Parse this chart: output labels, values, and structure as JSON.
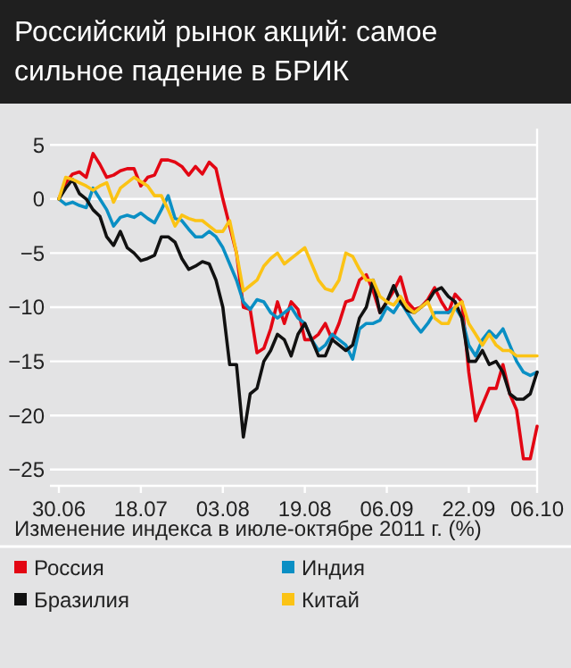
{
  "chart_data": {
    "type": "line",
    "title": "Российский рынок акций: самое сильное падение в БРИК",
    "xlabel": "Изменение индекса в июле-октябре 2011 г. (%)",
    "categories": [
      "30.06",
      null,
      null,
      null,
      null,
      null,
      null,
      null,
      null,
      null,
      null,
      null,
      "18.07",
      null,
      null,
      null,
      null,
      null,
      null,
      null,
      null,
      null,
      null,
      null,
      "03.08",
      null,
      null,
      null,
      null,
      null,
      null,
      null,
      null,
      null,
      null,
      null,
      "19.08",
      null,
      null,
      null,
      null,
      null,
      null,
      null,
      null,
      null,
      null,
      null,
      "06.09",
      null,
      null,
      null,
      null,
      null,
      null,
      null,
      null,
      null,
      null,
      null,
      "22.09",
      null,
      null,
      null,
      null,
      null,
      null,
      null,
      null,
      null,
      "06.10"
    ],
    "ylim": [
      -26.5,
      6.5
    ],
    "yticks": [
      5,
      0,
      {
        "value": -5,
        "label": "−5"
      },
      {
        "value": -10,
        "label": "−10"
      },
      {
        "value": -15,
        "label": "−15"
      },
      {
        "value": -20,
        "label": "−20"
      },
      {
        "value": -25,
        "label": "−25"
      }
    ],
    "grid": "y",
    "legend": "bottom",
    "line_style": "solid",
    "series": [
      {
        "name": "Россия",
        "color": "#e30613",
        "values": [
          0,
          1.5,
          2.3,
          2.5,
          2,
          4.2,
          3.2,
          2,
          2.2,
          2.6,
          2.8,
          2.8,
          1.2,
          2,
          2.2,
          3.6,
          3.6,
          3.4,
          3,
          2.2,
          3,
          2.3,
          3.4,
          2.8,
          0,
          -2.5,
          -5,
          -10,
          -10.2,
          -14.2,
          -13.8,
          -12,
          -9.5,
          -11.5,
          -9.5,
          -10.2,
          -13,
          -13,
          -12.5,
          -11.5,
          -13,
          -11.5,
          -9.5,
          -9.3,
          -7.5,
          -7,
          -8.5,
          -10.5,
          -9.5,
          -8.5,
          -7.2,
          -9.5,
          -10.2,
          -10,
          -9.3,
          -8.2,
          -9.5,
          -10.5,
          -8.8,
          -9.5,
          -16,
          -20.5,
          -19,
          -17.5,
          -17.5,
          -15.3,
          -18,
          -19.5,
          -24,
          -24,
          -21
        ]
      },
      {
        "name": "Индия",
        "color": "#0a8fc4",
        "values": [
          0,
          -0.5,
          -0.3,
          -0.6,
          -0.8,
          1,
          0,
          -1,
          -2.5,
          -1.7,
          -1.5,
          -1.7,
          -1.3,
          -1.8,
          -2.2,
          -1,
          0.3,
          -1.8,
          -2,
          -2.8,
          -3.5,
          -3.5,
          -3,
          -3.5,
          -4.5,
          -6,
          -7.5,
          -9.5,
          -10.2,
          -9.3,
          -9.5,
          -10.5,
          -11,
          -10.5,
          -10,
          -11,
          -11.5,
          -13,
          -14,
          -13.5,
          -12.5,
          -13,
          -13.5,
          -14.8,
          -12,
          -11.5,
          -11.5,
          -11.2,
          -10,
          -10.5,
          -9.5,
          -10.5,
          -11.5,
          -12.3,
          -11.5,
          -10.5,
          -10.5,
          -10.5,
          -10,
          -11,
          -13.5,
          -14.5,
          -13,
          -12.2,
          -12.8,
          -12,
          -13.5,
          -15,
          -16,
          -16.3,
          -16
        ]
      },
      {
        "name": "Бразилия",
        "color": "#111111",
        "values": [
          0,
          1,
          1.8,
          0.5,
          0,
          -1,
          -1.6,
          -3.5,
          -4.3,
          -3,
          -4.5,
          -5,
          -5.7,
          -5.5,
          -5.2,
          -3.5,
          -3.5,
          -4,
          -5.5,
          -6.5,
          -6.2,
          -5.8,
          -6,
          -7.5,
          -10,
          -15.3,
          -15.3,
          -22,
          -18,
          -17.5,
          -15,
          -14,
          -12.5,
          -13,
          -14.5,
          -12.5,
          -11.5,
          -13,
          -14.5,
          -14.5,
          -13,
          -13.5,
          -14,
          -13.5,
          -11,
          -10,
          -7.5,
          -10.5,
          -9.5,
          -8,
          -9.5,
          -10.3,
          -10.5,
          -10,
          -9.5,
          -8.5,
          -8.2,
          -9,
          -9.5,
          -11,
          -15,
          -15,
          -14,
          -15.3,
          -15,
          -16,
          -18,
          -18.5,
          -18.5,
          -18,
          -16
        ]
      },
      {
        "name": "Китай",
        "color": "#fbc315",
        "values": [
          0,
          2,
          1.8,
          1.5,
          1.2,
          0.8,
          1.2,
          1.5,
          -0.3,
          1,
          1.5,
          2,
          1.6,
          1.2,
          0.3,
          0.3,
          -1,
          -2.5,
          -1.5,
          -1.8,
          -2,
          -2,
          -2.5,
          -3,
          -3,
          -2,
          -5,
          -8.5,
          -8,
          -7.5,
          -6.2,
          -5.5,
          -5,
          -6,
          -5.5,
          -5,
          -4.5,
          -6,
          -7.5,
          -8.3,
          -8.5,
          -7.5,
          -5,
          -5.3,
          -6.5,
          -7.5,
          -7.5,
          -9,
          -9.5,
          -9.8,
          -9,
          -10,
          -10.5,
          -10,
          -9.5,
          -11,
          -11.5,
          -11.5,
          -10,
          -9.5,
          -11.5,
          -12.5,
          -13.5,
          -12.5,
          -13.5,
          -14,
          -14,
          -14.5,
          -14.5,
          -14.5,
          -14.5
        ]
      }
    ]
  }
}
